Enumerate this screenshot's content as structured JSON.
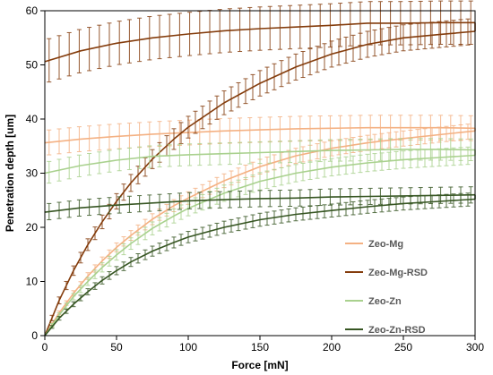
{
  "chart_data": {
    "type": "line",
    "xlabel": "Force [mN]",
    "ylabel": "Penetration depth [um]",
    "xlim": [
      0,
      300
    ],
    "ylim": [
      0,
      60
    ],
    "x_ticks": [
      0,
      50,
      100,
      150,
      200,
      250,
      300
    ],
    "y_ticks": [
      0,
      10,
      20,
      30,
      40,
      50,
      60
    ],
    "grid": "none",
    "legend_position": "bottom-right",
    "series": [
      {
        "name": "Zeo-Mg",
        "color": "#F4B183",
        "loading": {
          "x": [
            0,
            10,
            20,
            30,
            40,
            50,
            60,
            75,
            90,
            100,
            125,
            150,
            175,
            200,
            225,
            250,
            275,
            300
          ],
          "y": [
            0,
            4.2,
            7.8,
            11.0,
            13.8,
            16.3,
            18.5,
            21.5,
            24.0,
            25.4,
            28.6,
            31.2,
            33.2,
            34.6,
            35.6,
            36.4,
            37.1,
            37.8
          ],
          "err": 1.4
        },
        "unloading": {
          "x": [
            300,
            275,
            250,
            225,
            200,
            175,
            150,
            125,
            100,
            75,
            50,
            25,
            0
          ],
          "y": [
            38.3,
            38.4,
            38.4,
            38.4,
            38.3,
            38.2,
            38.0,
            37.8,
            37.5,
            37.2,
            36.8,
            36.3,
            35.6
          ],
          "err": 2.3
        }
      },
      {
        "name": "Zeo-Mg-RSD",
        "color": "#843C0C",
        "loading": {
          "x": [
            0,
            10,
            20,
            30,
            40,
            50,
            60,
            75,
            90,
            100,
            125,
            150,
            175,
            200,
            225,
            250,
            275,
            300
          ],
          "y": [
            0,
            6.5,
            12.0,
            16.8,
            21.0,
            24.8,
            28.2,
            32.6,
            36.3,
            38.5,
            43.0,
            46.6,
            49.6,
            52.0,
            53.8,
            55.0,
            55.6,
            56.2
          ],
          "err": 2.4
        },
        "unloading": {
          "x": [
            300,
            275,
            250,
            225,
            200,
            175,
            150,
            125,
            100,
            75,
            50,
            25,
            0
          ],
          "y": [
            57.8,
            57.8,
            57.7,
            57.7,
            57.3,
            57.0,
            56.7,
            56.3,
            55.7,
            55.0,
            54.0,
            52.6,
            50.6
          ],
          "err": 4.0
        }
      },
      {
        "name": "Zeo-Zn",
        "color": "#A9D18E",
        "loading": {
          "x": [
            0,
            10,
            20,
            30,
            40,
            50,
            60,
            75,
            90,
            100,
            125,
            150,
            175,
            200,
            225,
            250,
            275,
            300
          ],
          "y": [
            0,
            3.8,
            7.2,
            10.0,
            12.6,
            14.9,
            17.0,
            19.8,
            22.1,
            23.5,
            26.3,
            28.5,
            30.0,
            31.1,
            31.9,
            32.5,
            32.9,
            33.3
          ],
          "err": 1.6
        },
        "unloading": {
          "x": [
            300,
            275,
            250,
            225,
            200,
            175,
            150,
            125,
            100,
            75,
            50,
            25,
            0
          ],
          "y": [
            34.3,
            34.4,
            34.4,
            34.3,
            34.2,
            34.0,
            33.8,
            33.6,
            33.4,
            33.1,
            32.4,
            31.4,
            30.0
          ],
          "err": 2.0
        }
      },
      {
        "name": "Zeo-Zn-RSD",
        "color": "#375623",
        "loading": {
          "x": [
            0,
            10,
            20,
            30,
            40,
            50,
            60,
            75,
            90,
            100,
            125,
            150,
            175,
            200,
            225,
            250,
            275,
            300
          ],
          "y": [
            0,
            3.2,
            5.8,
            8.1,
            10.2,
            12.0,
            13.6,
            15.6,
            17.2,
            18.2,
            20.0,
            21.4,
            22.4,
            23.1,
            23.8,
            24.4,
            24.8,
            25.2
          ],
          "err": 1.2
        },
        "unloading": {
          "x": [
            300,
            275,
            250,
            225,
            200,
            175,
            150,
            125,
            100,
            75,
            50,
            25,
            0
          ],
          "y": [
            26.0,
            25.9,
            25.8,
            25.7,
            25.6,
            25.4,
            25.3,
            25.1,
            24.9,
            24.5,
            24.1,
            23.6,
            22.8
          ],
          "err": 1.5
        }
      }
    ]
  }
}
